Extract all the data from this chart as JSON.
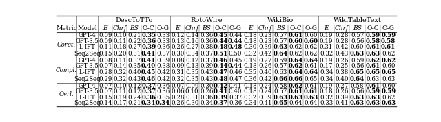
{
  "metrics": [
    "Corct.",
    "Compl.",
    "Ovrl."
  ],
  "models": [
    "GPT-4",
    "GPT-3.5",
    "L-IFT",
    "Seq2Seq"
  ],
  "col_headers": [
    "E",
    "Chrf",
    "BS",
    "O-C",
    "O-G"
  ],
  "group_labels": [
    "DescToTTo",
    "RotoWire",
    "WikiBio",
    "WikiTableText"
  ],
  "data": {
    "Corct.": {
      "GPT-4": [
        "0.09",
        "0.10",
        "0.21",
        "0.35",
        "0.33",
        "0.12",
        "0.14",
        "0.36",
        "0.45",
        "0.44",
        "0.18",
        "0.23",
        "0.57",
        "0.61",
        "0.60",
        "0.19",
        "0.28",
        "0.57",
        "0.59",
        "0.59"
      ],
      "GPT-3.5": [
        "0.09",
        "0.11",
        "0.22",
        "0.36",
        "0.33",
        "0.13",
        "0.16",
        "0.36",
        "0.44",
        "0.44",
        "0.18",
        "0.23",
        "0.57",
        "0.60",
        "0.60",
        "0.19",
        "0.28",
        "0.56",
        "0.58",
        "0.58"
      ],
      "L-IFT": [
        "0.11",
        "0.18",
        "0.27",
        "0.39",
        "0.36",
        "0.26",
        "0.27",
        "0.38",
        "0.48",
        "0.48",
        "0.30",
        "0.39",
        "0.63",
        "0.62",
        "0.62",
        "0.31",
        "0.42",
        "0.60",
        "0.61",
        "0.61"
      ],
      "Seq2Seq": [
        "0.15",
        "0.20",
        "0.31",
        "0.41",
        "0.37",
        "0.30",
        "0.34",
        "0.37",
        "0.51",
        "0.50",
        "0.32",
        "0.42",
        "0.64",
        "0.62",
        "0.62",
        "0.32",
        "0.43",
        "0.63",
        "0.63",
        "0.62"
      ]
    },
    "Compl.": {
      "GPT-4": [
        "0.08",
        "0.11",
        "0.37",
        "0.41",
        "0.39",
        "0.08",
        "0.12",
        "0.37",
        "0.46",
        "0.45",
        "0.19",
        "0.27",
        "0.59",
        "0.64",
        "0.64",
        "0.19",
        "0.26",
        "0.59",
        "0.62",
        "0.62"
      ],
      "GPT-3.5": [
        "0.07",
        "0.14",
        "0.35",
        "0.40",
        "0.38",
        "0.09",
        "0.13",
        "0.39",
        "0.44",
        "0.44",
        "0.18",
        "0.26",
        "0.57",
        "0.62",
        "0.61",
        "0.17",
        "0.25",
        "0.56",
        "0.61",
        "0.60"
      ],
      "L-IFT": [
        "0.28",
        "0.32",
        "0.40",
        "0.45",
        "0.42",
        "0.31",
        "0.35",
        "0.43",
        "0.47",
        "0.46",
        "0.35",
        "0.40",
        "0.63",
        "0.64",
        "0.64",
        "0.34",
        "0.38",
        "0.65",
        "0.65",
        "0.65"
      ],
      "Seq2Seq": [
        "0.29",
        "0.32",
        "0.43",
        "0.46",
        "0.42",
        "0.32",
        "0.35",
        "0.43",
        "0.48",
        "0.47",
        "0.36",
        "0.42",
        "0.66",
        "0.66",
        "0.65",
        "0.34",
        "0.40",
        "0.64",
        "0.63",
        "0.63"
      ]
    },
    "Ovrl.": {
      "GPT-4": [
        "0.07",
        "0.10",
        "0.12",
        "0.37",
        "0.36",
        "0.07",
        "0.09",
        "0.30",
        "0.42",
        "0.41",
        "0.18",
        "0.24",
        "0.58",
        "0.62",
        "0.61",
        "0.19",
        "0.27",
        "0.58",
        "0.61",
        "0.60"
      ],
      "GPT-3.5": [
        "0.07",
        "0.11",
        "0.12",
        "0.37",
        "0.36",
        "0.06",
        "0.10",
        "0.26",
        "0.41",
        "0.40",
        "0.18",
        "0.24",
        "0.57",
        "0.61",
        "0.61",
        "0.18",
        "0.26",
        "0.56",
        "0.59",
        "0.59"
      ],
      "L-IFT": [
        "0.15",
        "0.19",
        "0.24",
        "0.36",
        "0.35",
        "0.28",
        "0.31",
        "0.36",
        "0.39",
        "0.37",
        "0.32",
        "0.39",
        "0.63",
        "0.63",
        "0.63",
        "0.32",
        "0.39",
        "0.63",
        "0.63",
        "0.62"
      ],
      "Seq2Seq": [
        "0.14",
        "0.17",
        "0.21",
        "0.34",
        "0.34",
        "0.26",
        "0.30",
        "0.34",
        "0.37",
        "0.36",
        "0.34",
        "0.41",
        "0.65",
        "0.64",
        "0.64",
        "0.33",
        "0.41",
        "0.63",
        "0.63",
        "0.63"
      ]
    }
  },
  "bold": {
    "Corct.": {
      "GPT-4": [
        false,
        false,
        false,
        true,
        false,
        false,
        false,
        false,
        true,
        false,
        false,
        false,
        false,
        true,
        false,
        false,
        false,
        false,
        true,
        true
      ],
      "GPT-3.5": [
        false,
        false,
        false,
        true,
        false,
        false,
        false,
        false,
        true,
        true,
        false,
        false,
        false,
        true,
        true,
        false,
        false,
        false,
        true,
        true
      ],
      "L-IFT": [
        false,
        false,
        false,
        true,
        false,
        false,
        false,
        false,
        true,
        true,
        false,
        false,
        true,
        false,
        false,
        false,
        false,
        false,
        true,
        true
      ],
      "Seq2Seq": [
        false,
        false,
        false,
        true,
        false,
        false,
        false,
        false,
        true,
        false,
        false,
        false,
        true,
        false,
        false,
        false,
        false,
        true,
        true,
        false
      ]
    },
    "Compl.": {
      "GPT-4": [
        false,
        false,
        false,
        true,
        false,
        false,
        false,
        false,
        true,
        false,
        false,
        false,
        false,
        true,
        true,
        false,
        false,
        false,
        true,
        true
      ],
      "GPT-3.5": [
        false,
        false,
        false,
        true,
        false,
        false,
        false,
        false,
        true,
        true,
        false,
        false,
        false,
        true,
        false,
        false,
        false,
        false,
        true,
        false
      ],
      "L-IFT": [
        false,
        false,
        false,
        true,
        false,
        false,
        false,
        false,
        true,
        false,
        false,
        false,
        false,
        true,
        true,
        false,
        false,
        true,
        true,
        true
      ],
      "Seq2Seq": [
        false,
        false,
        false,
        true,
        false,
        false,
        false,
        false,
        true,
        false,
        false,
        false,
        true,
        true,
        false,
        false,
        false,
        true,
        false,
        false
      ]
    },
    "Ovrl.": {
      "GPT-4": [
        false,
        false,
        false,
        true,
        false,
        false,
        false,
        false,
        true,
        false,
        false,
        false,
        false,
        true,
        false,
        false,
        false,
        false,
        true,
        false
      ],
      "GPT-3.5": [
        false,
        false,
        false,
        true,
        false,
        false,
        false,
        false,
        true,
        false,
        false,
        false,
        false,
        true,
        true,
        false,
        false,
        false,
        true,
        true
      ],
      "L-IFT": [
        false,
        false,
        false,
        true,
        false,
        false,
        false,
        false,
        true,
        false,
        false,
        false,
        true,
        true,
        true,
        false,
        false,
        true,
        true,
        false
      ],
      "Seq2Seq": [
        false,
        false,
        false,
        true,
        true,
        false,
        false,
        false,
        true,
        false,
        false,
        false,
        true,
        false,
        false,
        false,
        false,
        true,
        true,
        true
      ]
    }
  },
  "bg_color": "#ffffff",
  "font_size": 6.2,
  "header_font_size": 6.5,
  "group_font_size": 7.0,
  "line_color": "#444444"
}
